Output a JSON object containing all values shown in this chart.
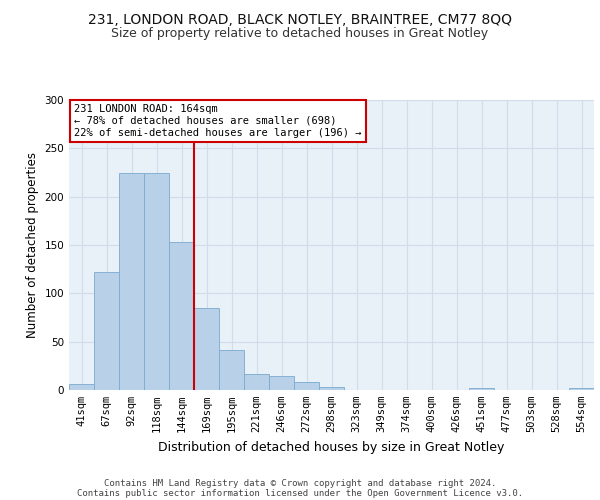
{
  "title1": "231, LONDON ROAD, BLACK NOTLEY, BRAINTREE, CM77 8QQ",
  "title2": "Size of property relative to detached houses in Great Notley",
  "xlabel": "Distribution of detached houses by size in Great Notley",
  "ylabel": "Number of detached properties",
  "bar_labels": [
    "41sqm",
    "67sqm",
    "92sqm",
    "118sqm",
    "144sqm",
    "169sqm",
    "195sqm",
    "221sqm",
    "246sqm",
    "272sqm",
    "298sqm",
    "323sqm",
    "349sqm",
    "374sqm",
    "400sqm",
    "426sqm",
    "451sqm",
    "477sqm",
    "503sqm",
    "528sqm",
    "554sqm"
  ],
  "bar_values": [
    6,
    122,
    225,
    224,
    153,
    85,
    41,
    17,
    15,
    8,
    3,
    0,
    0,
    0,
    0,
    0,
    2,
    0,
    0,
    0,
    2
  ],
  "bar_color": "#b8d0e8",
  "bar_edgecolor": "#7aaace",
  "grid_color": "#d0dce8",
  "bg_color": "#e8f0f8",
  "annotation_line1": "231 LONDON ROAD: 164sqm",
  "annotation_line2": "← 78% of detached houses are smaller (698)",
  "annotation_line3": "22% of semi-detached houses are larger (196) →",
  "vline_position": 4.5,
  "vline_color": "#cc0000",
  "box_edgecolor": "#cc0000",
  "ylim": [
    0,
    300
  ],
  "yticks": [
    0,
    50,
    100,
    150,
    200,
    250,
    300
  ],
  "footer1": "Contains HM Land Registry data © Crown copyright and database right 2024.",
  "footer2": "Contains public sector information licensed under the Open Government Licence v3.0.",
  "title_fontsize": 10,
  "subtitle_fontsize": 9,
  "tick_fontsize": 7.5,
  "ylabel_fontsize": 8.5,
  "xlabel_fontsize": 9,
  "annot_fontsize": 7.5,
  "footer_fontsize": 6.5
}
